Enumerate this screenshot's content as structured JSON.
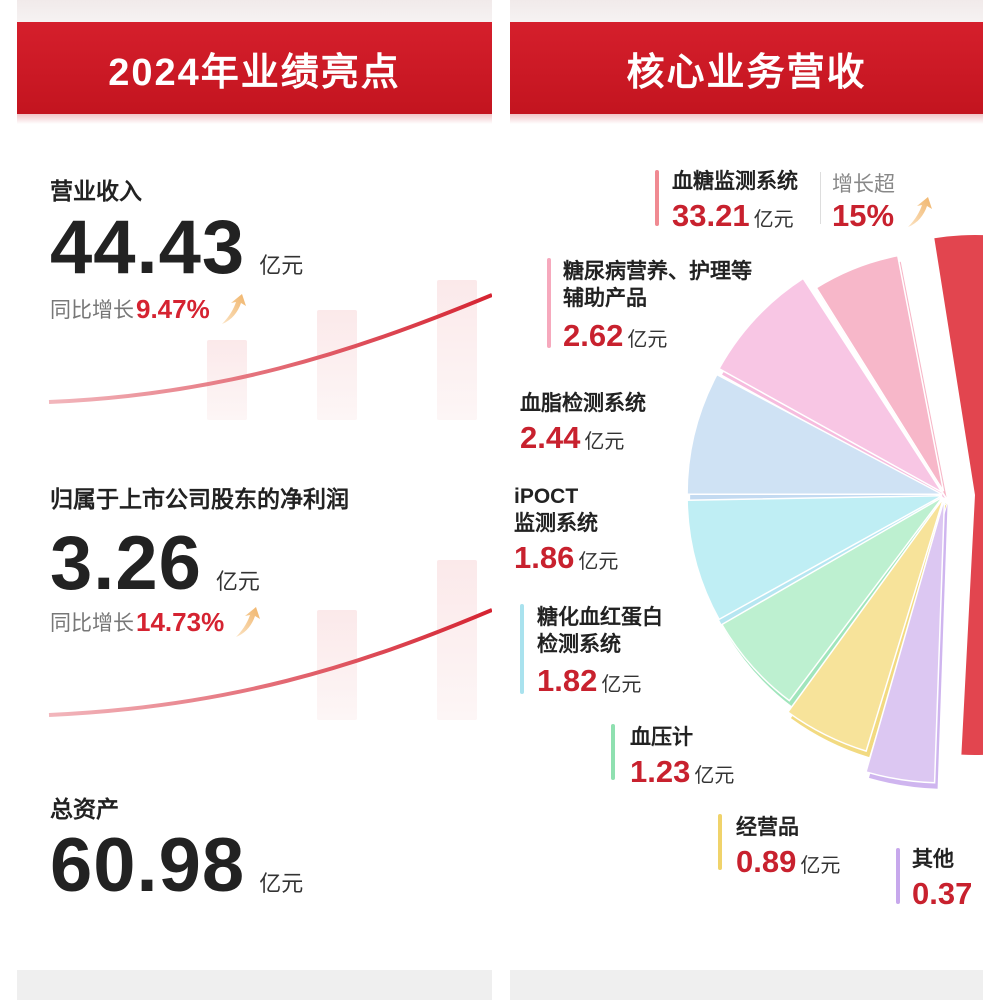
{
  "left_panel": {
    "title": "2024年业绩亮点",
    "metrics": [
      {
        "label": "营业收入",
        "value": "44.43",
        "unit": "亿元",
        "growth_label": "同比增长",
        "growth_value": "9.47%"
      },
      {
        "label": "归属于上市公司股东的净利润",
        "value": "3.26",
        "unit": "亿元",
        "growth_label": "同比增长",
        "growth_value": "14.73%"
      },
      {
        "label": "总资产",
        "value": "60.98",
        "unit": "亿元"
      }
    ]
  },
  "right_panel": {
    "title": "核心业务营收",
    "growth_note": {
      "label": "增长超",
      "value": "15%"
    },
    "unit": "亿元",
    "segments": [
      {
        "name": "血糖监测系统",
        "value": "33.21",
        "color": "#e2454f",
        "mark": "#f08a92"
      },
      {
        "name": "糖尿病营养、护理等辅助产品",
        "line1": "糖尿病营养、护理等",
        "line2": "辅助产品",
        "value": "2.62",
        "color": "#f7b7c9",
        "mark": "#f6a9bd"
      },
      {
        "name": "血脂检测系统",
        "value": "2.44",
        "color": "#f8c6e4",
        "mark": "#f5b0d8"
      },
      {
        "name": "iPOCT监测系统",
        "line1": "iPOCT",
        "line2": "监测系统",
        "value": "1.86",
        "color": "#cfe2f4",
        "mark": "#b9d4ef"
      },
      {
        "name": "糖化血红蛋白检测系统",
        "line1": "糖化血红蛋白",
        "line2": "检测系统",
        "value": "1.82",
        "color": "#bfeef4",
        "mark": "#a9e2ee"
      },
      {
        "name": "血压计",
        "value": "1.23",
        "color": "#bdf0d0",
        "mark": "#8fe0b0"
      },
      {
        "name": "经营品",
        "value": "0.89",
        "color": "#f7e39a",
        "mark": "#f0d36b"
      },
      {
        "name": "其他",
        "value": "0.37",
        "color": "#dcc7f2",
        "mark": "#c7a8ec"
      }
    ]
  },
  "chart_data": [
    {
      "type": "pie",
      "title": "核心业务营收",
      "unit": "亿元",
      "categories": [
        "血糖监测系统",
        "糖尿病营养、护理等辅助产品",
        "血脂检测系统",
        "iPOCT监测系统",
        "糖化血红蛋白检测系统",
        "血压计",
        "经营品",
        "其他"
      ],
      "values": [
        33.21,
        2.62,
        2.44,
        1.86,
        1.82,
        1.23,
        0.89,
        0.37
      ],
      "annotations": [
        "血糖监测系统 增长超 15%"
      ]
    }
  ]
}
